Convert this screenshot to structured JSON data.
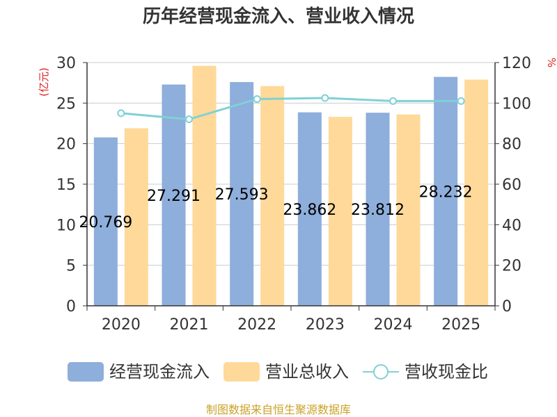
{
  "chart_data": {
    "type": "bar",
    "title": "历年经营现金流入、营业收入情况",
    "categories": [
      "2020",
      "2021",
      "2022",
      "2023",
      "2024",
      "2025"
    ],
    "y_left_unit": "(亿元)",
    "y_right_unit": "%",
    "y_left_ticks": [
      "0",
      "5",
      "10",
      "15",
      "20",
      "25",
      "30"
    ],
    "y_right_ticks": [
      "0",
      "20",
      "40",
      "60",
      "80",
      "100",
      "120"
    ],
    "ylim_left": [
      0,
      30
    ],
    "ylim_right": [
      0,
      120
    ],
    "series": [
      {
        "name": "经营现金流入",
        "type": "bar",
        "axis": "left",
        "color": "#8eaedb",
        "values": [
          20.769,
          27.291,
          27.593,
          23.862,
          23.812,
          28.232
        ],
        "labels": [
          "20.769",
          "27.291",
          "27.593",
          "23.862",
          "23.812",
          "28.232"
        ]
      },
      {
        "name": "营业总收入",
        "type": "bar",
        "axis": "left",
        "color": "#ffd999",
        "values": [
          21.9,
          29.6,
          27.1,
          23.3,
          23.6,
          27.9
        ]
      },
      {
        "name": "营收现金比",
        "type": "line",
        "axis": "right",
        "color": "#7fd1d6",
        "values": [
          95,
          92,
          102,
          102.5,
          101,
          101
        ]
      }
    ],
    "legend_position": "bottom",
    "grid": true
  },
  "footer": {
    "source": "制图数据来自恒生聚源数据库"
  }
}
